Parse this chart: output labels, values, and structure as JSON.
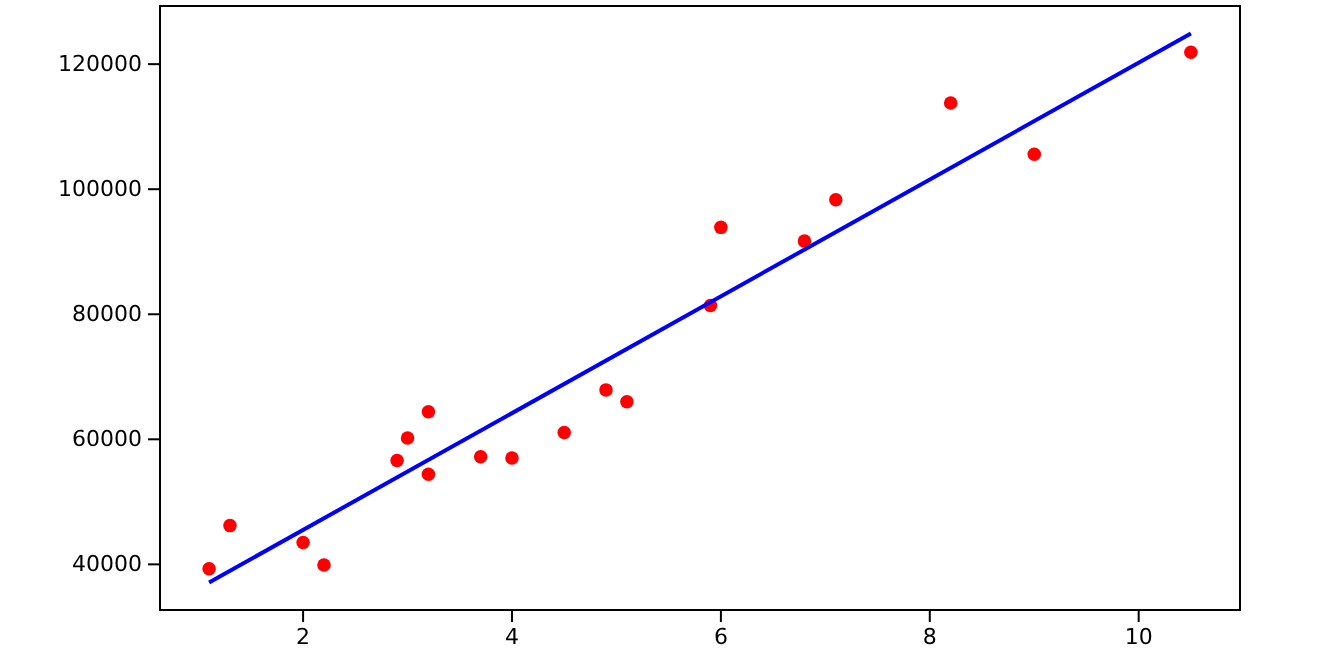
{
  "chart_data": {
    "type": "scatter",
    "xlim": [
      0.63,
      10.97
    ],
    "ylim": [
      32700,
      129300
    ],
    "xticks": [
      2,
      4,
      6,
      8,
      10
    ],
    "yticks": [
      40000,
      60000,
      80000,
      100000,
      120000
    ],
    "grid": false,
    "series": [
      {
        "color": "#ff0000",
        "marker": "circle",
        "x": [
          1.1,
          1.3,
          2.0,
          2.2,
          2.9,
          3.0,
          3.2,
          3.2,
          3.7,
          4.0,
          4.5,
          4.9,
          5.1,
          5.9,
          6.0,
          6.8,
          7.1,
          8.2,
          9.0,
          10.5
        ],
        "values": [
          39300,
          46200,
          43500,
          39900,
          56600,
          60200,
          54400,
          64400,
          57200,
          57000,
          61100,
          67900,
          66000,
          81400,
          93900,
          91700,
          98300,
          113800,
          105600,
          121900
        ]
      },
      {
        "type": "line",
        "color": "#0000ff",
        "line_style": "solid",
        "x": [
          1.1,
          10.5
        ],
        "values": [
          37100,
          124900
        ]
      }
    ]
  }
}
